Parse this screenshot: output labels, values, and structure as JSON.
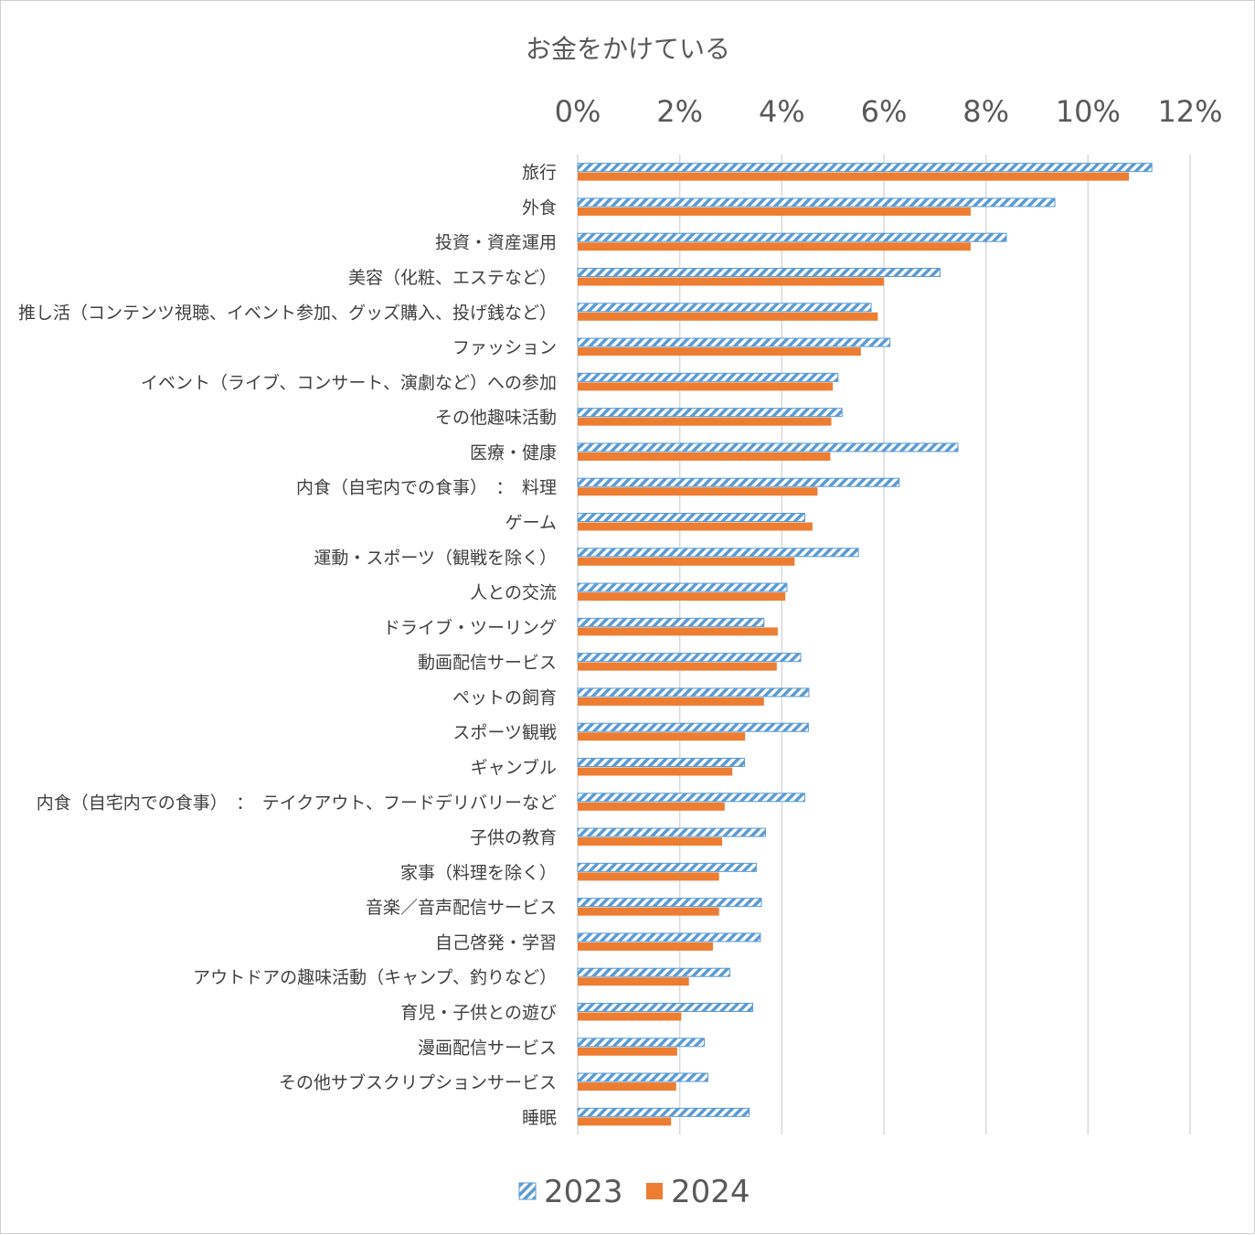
{
  "chart_data": {
    "type": "bar",
    "orientation": "horizontal",
    "title": "お金をかけている",
    "xlabel": "",
    "ylabel": "",
    "xlim": [
      0,
      12
    ],
    "x_tick_values": [
      0,
      2,
      4,
      6,
      8,
      10,
      12
    ],
    "x_tick_labels": [
      "0%",
      "2%",
      "4%",
      "6%",
      "8%",
      "10%",
      "12%"
    ],
    "x_axis_position": "top",
    "grid": true,
    "legend_position": "bottom",
    "categories": [
      "旅行",
      "外食",
      "投資・資産運用",
      "美容（化粧、エステなど）",
      "推し活（コンテンツ視聴、イベント参加、グッズ購入、投げ銭など）",
      "ファッション",
      "イベント（ライブ、コンサート、演劇など）への参加",
      "その他趣味活動",
      "医療・健康",
      "内食（自宅内での食事）　：　料理",
      "ゲーム",
      "運動・スポーツ（観戦を除く）",
      "人との交流",
      "ドライブ・ツーリング",
      "動画配信サービス",
      "ペットの飼育",
      "スポーツ観戦",
      "ギャンブル",
      "内食（自宅内での食事）　：　テイクアウト、フードデリバリーなど",
      "子供の教育",
      "家事（料理を除く）",
      "音楽／音声配信サービス",
      "自己啓発・学習",
      "アウトドアの趣味活動（キャンプ、釣りなど）",
      "育児・子供との遊び",
      "漫画配信サービス",
      "その他サブスクリプションサービス",
      "睡眠"
    ],
    "series": [
      {
        "name": "2023",
        "pattern": "diagonal-hatch",
        "color": "#5b9bd5",
        "values": [
          11.25,
          9.35,
          8.4,
          7.1,
          5.75,
          6.12,
          5.1,
          5.18,
          7.45,
          6.3,
          4.45,
          5.5,
          4.1,
          3.65,
          4.37,
          4.53,
          4.52,
          3.27,
          4.45,
          3.68,
          3.5,
          3.6,
          3.58,
          2.98,
          3.43,
          2.48,
          2.55,
          3.36
        ]
      },
      {
        "name": "2024",
        "pattern": "solid",
        "color": "#ed7d31",
        "values": [
          10.8,
          7.7,
          7.7,
          6.0,
          5.88,
          5.55,
          5.0,
          4.97,
          4.95,
          4.7,
          4.6,
          4.25,
          4.07,
          3.92,
          3.9,
          3.65,
          3.28,
          3.03,
          2.88,
          2.83,
          2.77,
          2.77,
          2.65,
          2.18,
          2.03,
          1.95,
          1.93,
          1.83
        ]
      }
    ]
  }
}
